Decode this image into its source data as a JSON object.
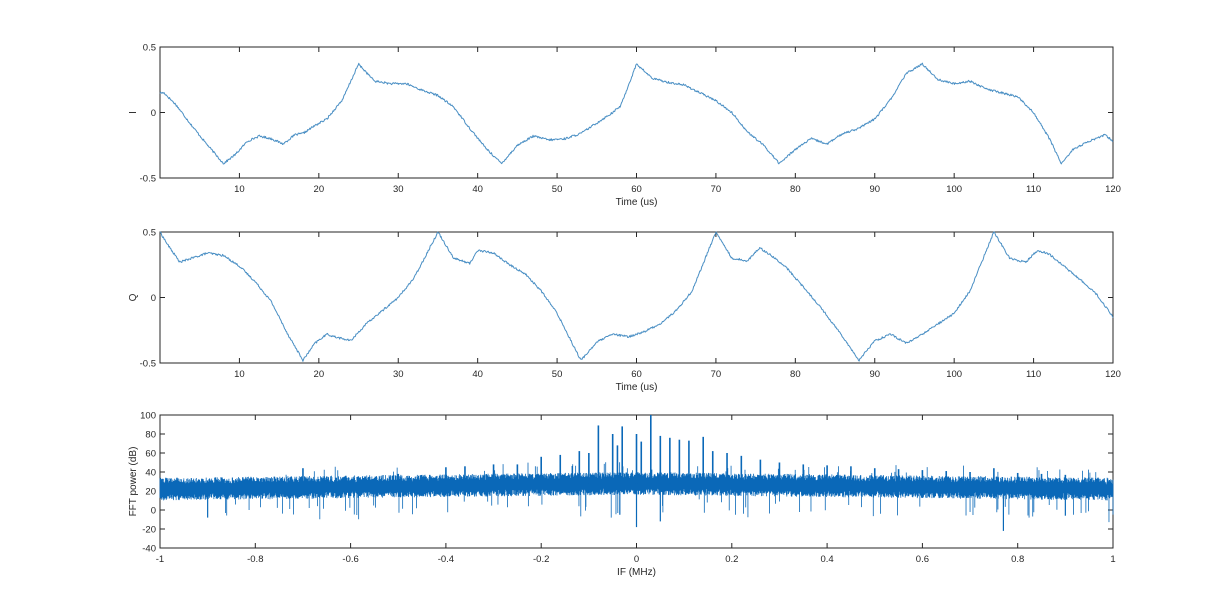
{
  "chart_data": [
    {
      "type": "line",
      "title": "",
      "xlabel": "Time (us)",
      "ylabel": "I",
      "xlim": [
        0,
        120
      ],
      "ylim": [
        -0.5,
        0.5
      ],
      "xticks": [
        10,
        20,
        30,
        40,
        50,
        60,
        70,
        80,
        90,
        100,
        110,
        120
      ],
      "yticks": [
        -0.5,
        0,
        0.5
      ],
      "xtick_labels": [
        "10",
        "20",
        "30",
        "40",
        "50",
        "60",
        "70",
        "80",
        "90",
        "100",
        "110",
        "120"
      ],
      "ytick_labels": [
        "-0.5",
        "0",
        "0.5"
      ],
      "grid": false,
      "line_color": "#4a8fc4",
      "noise": 0.008,
      "period": 35,
      "series": [
        {
          "x": [
            0,
            0.5,
            2,
            4,
            6,
            8,
            9.5,
            11,
            12.5,
            14,
            15.5,
            17,
            18,
            19.5,
            21,
            23,
            25,
            27,
            29,
            31,
            33,
            35,
            37,
            39,
            41,
            43,
            45,
            47,
            49,
            51,
            53,
            55,
            57,
            58,
            60,
            62,
            64,
            66,
            68,
            70,
            72,
            74,
            76,
            78,
            80,
            82,
            84,
            86,
            88,
            90,
            92,
            94,
            96,
            98,
            100,
            102,
            104,
            106,
            108,
            110,
            112,
            113.5,
            115,
            117,
            119,
            120
          ],
          "y": [
            0.15,
            0.15,
            0.06,
            -0.1,
            -0.25,
            -0.39,
            -0.32,
            -0.22,
            -0.18,
            -0.2,
            -0.24,
            -0.17,
            -0.16,
            -0.1,
            -0.05,
            0.1,
            0.37,
            0.24,
            0.22,
            0.22,
            0.17,
            0.13,
            0.04,
            -0.12,
            -0.27,
            -0.39,
            -0.25,
            -0.18,
            -0.21,
            -0.2,
            -0.16,
            -0.08,
            0.0,
            0.05,
            0.37,
            0.26,
            0.23,
            0.21,
            0.15,
            0.09,
            0.0,
            -0.15,
            -0.25,
            -0.39,
            -0.28,
            -0.2,
            -0.24,
            -0.16,
            -0.12,
            -0.05,
            0.1,
            0.3,
            0.37,
            0.25,
            0.22,
            0.24,
            0.18,
            0.15,
            0.12,
            0.0,
            -0.2,
            -0.39,
            -0.28,
            -0.22,
            -0.17,
            -0.22
          ]
        }
      ]
    },
    {
      "type": "line",
      "title": "",
      "xlabel": "Time (us)",
      "ylabel": "Q",
      "xlim": [
        0,
        120
      ],
      "ylim": [
        -0.5,
        0.5
      ],
      "xticks": [
        10,
        20,
        30,
        40,
        50,
        60,
        70,
        80,
        90,
        100,
        110,
        120
      ],
      "yticks": [
        -0.5,
        0,
        0.5
      ],
      "xtick_labels": [
        "10",
        "20",
        "30",
        "40",
        "50",
        "60",
        "70",
        "80",
        "90",
        "100",
        "110",
        "120"
      ],
      "ytick_labels": [
        "-0.5",
        "0",
        "0.5"
      ],
      "grid": false,
      "line_color": "#4a8fc4",
      "noise": 0.008,
      "period": 35,
      "series": [
        {
          "x": [
            0,
            1,
            2.5,
            4,
            6,
            8,
            10,
            12,
            14,
            16,
            18,
            19.5,
            21,
            22,
            24,
            26,
            28,
            30,
            32,
            35,
            37,
            39,
            40,
            42,
            44,
            46,
            48,
            50,
            53,
            55,
            57,
            59,
            61,
            63,
            65,
            67,
            70,
            72,
            74,
            75.5,
            77,
            79,
            81,
            83,
            86,
            88,
            90,
            92,
            94,
            96,
            98,
            100,
            102,
            105,
            107,
            109,
            110.5,
            112,
            114,
            116,
            118,
            120
          ],
          "y": [
            0.5,
            0.4,
            0.27,
            0.3,
            0.34,
            0.32,
            0.24,
            0.12,
            -0.03,
            -0.27,
            -0.48,
            -0.35,
            -0.28,
            -0.3,
            -0.33,
            -0.2,
            -0.1,
            0.0,
            0.15,
            0.5,
            0.3,
            0.26,
            0.36,
            0.34,
            0.25,
            0.18,
            0.05,
            -0.12,
            -0.48,
            -0.34,
            -0.28,
            -0.3,
            -0.26,
            -0.2,
            -0.1,
            0.05,
            0.5,
            0.3,
            0.28,
            0.38,
            0.32,
            0.22,
            0.08,
            -0.06,
            -0.3,
            -0.48,
            -0.33,
            -0.28,
            -0.35,
            -0.28,
            -0.2,
            -0.12,
            0.05,
            0.5,
            0.3,
            0.27,
            0.36,
            0.33,
            0.23,
            0.13,
            0.02,
            -0.15
          ]
        }
      ]
    },
    {
      "type": "line",
      "title": "",
      "xlabel": "IF (MHz)",
      "ylabel": "FFT power (dB)",
      "xlim": [
        -1,
        1
      ],
      "ylim": [
        -40,
        100
      ],
      "xticks": [
        -1,
        -0.8,
        -0.6,
        -0.4,
        -0.2,
        0,
        0.2,
        0.4,
        0.6,
        0.8,
        1
      ],
      "yticks": [
        -40,
        -20,
        0,
        20,
        40,
        60,
        80,
        100
      ],
      "xtick_labels": [
        "-1",
        "-0.8",
        "-0.6",
        "-0.4",
        "-0.2",
        "0",
        "0.2",
        "0.4",
        "0.6",
        "0.8",
        "1"
      ],
      "ytick_labels": [
        "-40",
        "-20",
        "0",
        "20",
        "40",
        "60",
        "80",
        "100"
      ],
      "grid": false,
      "line_color": "#0a68b8",
      "noise_floor_db": {
        "edge": 22,
        "center": 28
      },
      "noise_spread_db": 12,
      "series": [
        {
          "spikes": [
            {
              "x": -0.7,
              "y": 44
            },
            {
              "x": -0.5,
              "y": 38
            },
            {
              "x": -0.4,
              "y": 45
            },
            {
              "x": -0.36,
              "y": 46
            },
            {
              "x": -0.3,
              "y": 48
            },
            {
              "x": -0.25,
              "y": 48
            },
            {
              "x": -0.2,
              "y": 56
            },
            {
              "x": -0.16,
              "y": 58
            },
            {
              "x": -0.12,
              "y": 62
            },
            {
              "x": -0.1,
              "y": 60
            },
            {
              "x": -0.08,
              "y": 89
            },
            {
              "x": -0.05,
              "y": 80
            },
            {
              "x": -0.04,
              "y": 68
            },
            {
              "x": -0.03,
              "y": 88
            },
            {
              "x": 0.0,
              "y": 80
            },
            {
              "x": 0.01,
              "y": 72
            },
            {
              "x": 0.03,
              "y": 100
            },
            {
              "x": 0.05,
              "y": 78
            },
            {
              "x": 0.07,
              "y": 76
            },
            {
              "x": 0.09,
              "y": 74
            },
            {
              "x": 0.11,
              "y": 73
            },
            {
              "x": 0.14,
              "y": 77
            },
            {
              "x": 0.16,
              "y": 62
            },
            {
              "x": 0.19,
              "y": 60
            },
            {
              "x": 0.22,
              "y": 57
            },
            {
              "x": 0.26,
              "y": 53
            },
            {
              "x": 0.3,
              "y": 50
            },
            {
              "x": 0.35,
              "y": 48
            },
            {
              "x": 0.4,
              "y": 47
            },
            {
              "x": 0.45,
              "y": 46
            },
            {
              "x": 0.5,
              "y": 44
            },
            {
              "x": 0.55,
              "y": 43
            },
            {
              "x": 0.6,
              "y": 42
            },
            {
              "x": 0.65,
              "y": 41
            },
            {
              "x": 0.7,
              "y": 40
            },
            {
              "x": 0.75,
              "y": 44
            },
            {
              "x": 0.8,
              "y": 39
            },
            {
              "x": 0.85,
              "y": 38
            },
            {
              "x": 0.9,
              "y": 37
            }
          ],
          "dips": [
            {
              "x": -0.035,
              "y": -5
            },
            {
              "x": 0.0,
              "y": -18
            },
            {
              "x": 0.05,
              "y": -12
            },
            {
              "x": 0.77,
              "y": -22
            },
            {
              "x": -0.9,
              "y": -8
            },
            {
              "x": 0.9,
              "y": -6
            }
          ]
        }
      ]
    }
  ]
}
